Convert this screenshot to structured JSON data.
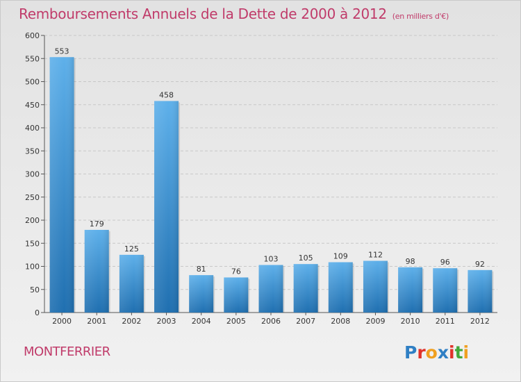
{
  "header": {
    "title": "Remboursements Annuels de la Dette de 2000 à 2012",
    "unit": "(en milliers d'€)"
  },
  "footer": {
    "town": "MONTFERRIER",
    "logo_text": "Proxiti"
  },
  "colors": {
    "accent": "#c03b6a",
    "bar_top": "#5eb0ea",
    "bar_bottom": "#1f6fb0",
    "grid": "#c8c8c8"
  },
  "chart_data": {
    "type": "bar",
    "title": "Remboursements Annuels de la Dette de 2000 à 2012",
    "xlabel": "",
    "ylabel": "",
    "categories": [
      "2000",
      "2001",
      "2002",
      "2003",
      "2004",
      "2005",
      "2006",
      "2007",
      "2008",
      "2009",
      "2010",
      "2011",
      "2012"
    ],
    "values": [
      553,
      179,
      125,
      458,
      81,
      76,
      103,
      105,
      109,
      112,
      98,
      96,
      92
    ],
    "ylim": [
      0,
      600
    ],
    "yticks": [
      0,
      50,
      100,
      150,
      200,
      250,
      300,
      350,
      400,
      450,
      500,
      550,
      600
    ],
    "grid": "horizontal-dashed",
    "legend": "none"
  }
}
